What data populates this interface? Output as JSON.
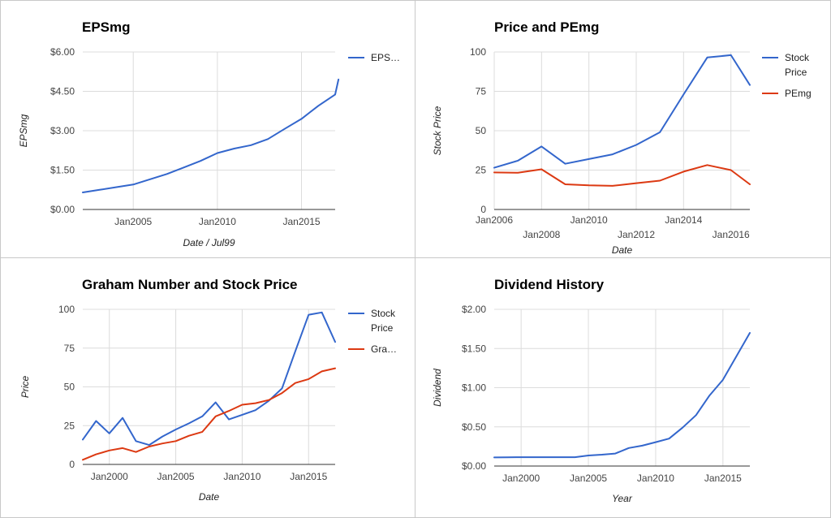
{
  "chart_data": [
    {
      "type": "line",
      "title": "EPSmg",
      "xlabel": "Date / Jul99",
      "ylabel": "EPSmg",
      "x_ticks": [
        {
          "label": "Jan2005",
          "row": 0
        },
        {
          "label": "Jan2010",
          "row": 0
        },
        {
          "label": "Jan2015",
          "row": 0
        }
      ],
      "xlim": [
        2002,
        2017
      ],
      "ylim": [
        0,
        6
      ],
      "y_ticks": [
        0,
        1.5,
        3,
        4.5,
        6
      ],
      "y_tick_labels": [
        "$0.00",
        "$1.50",
        "$3.00",
        "$4.50",
        "$6.00"
      ],
      "grid": true,
      "legend": "right",
      "series": [
        {
          "name": "EPS…",
          "color": "#3366cc",
          "x": [
            2002,
            2003,
            2004,
            2005,
            2006,
            2007,
            2008,
            2009,
            2010,
            2011,
            2012,
            2013,
            2014,
            2015,
            2016,
            2017,
            2017.2
          ],
          "y": [
            0.65,
            0.75,
            0.85,
            0.95,
            1.15,
            1.35,
            1.6,
            1.85,
            2.15,
            2.32,
            2.45,
            2.68,
            3.07,
            3.45,
            3.95,
            4.38,
            4.95
          ]
        }
      ]
    },
    {
      "type": "line",
      "title": "Price and PEmg",
      "xlabel": "Date",
      "ylabel": "Stock Price",
      "x_ticks": [
        {
          "label": "Jan2006",
          "row": 0
        },
        {
          "label": "Jan2008",
          "row": 1
        },
        {
          "label": "Jan2010",
          "row": 0
        },
        {
          "label": "Jan2012",
          "row": 1
        },
        {
          "label": "Jan2014",
          "row": 0
        },
        {
          "label": "Jan2016",
          "row": 1
        }
      ],
      "xlim": [
        2006,
        2016.8
      ],
      "ylim": [
        0,
        100
      ],
      "y_ticks": [
        0,
        25,
        50,
        75,
        100
      ],
      "y_tick_labels": [
        "0",
        "25",
        "50",
        "75",
        "100"
      ],
      "grid": true,
      "legend": "right",
      "series": [
        {
          "name_lines": [
            "Stock",
            "Price"
          ],
          "color": "#3366cc",
          "x": [
            2006,
            2007,
            2008,
            2009,
            2010,
            2011,
            2012,
            2013,
            2014,
            2015,
            2016,
            2016.8
          ],
          "y": [
            26.5,
            31,
            40,
            29,
            32,
            35,
            41,
            49,
            73,
            96.5,
            98,
            79
          ]
        },
        {
          "name_lines": [
            "PEmg"
          ],
          "color": "#dc3912",
          "x": [
            2006,
            2007,
            2008,
            2009,
            2010,
            2011,
            2012,
            2013,
            2014,
            2015,
            2016,
            2016.8
          ],
          "y": [
            23.5,
            23.3,
            25.5,
            16,
            15.3,
            15,
            16.7,
            18.3,
            24,
            28.2,
            25,
            16
          ]
        }
      ]
    },
    {
      "type": "line",
      "title": "Graham Number and Stock Price",
      "xlabel": "Date",
      "ylabel": "Price",
      "x_ticks": [
        {
          "label": "Jan2000",
          "row": 0
        },
        {
          "label": "Jan2005",
          "row": 0
        },
        {
          "label": "Jan2010",
          "row": 0
        },
        {
          "label": "Jan2015",
          "row": 0
        }
      ],
      "xlim": [
        1998,
        2017
      ],
      "ylim": [
        0,
        100
      ],
      "y_ticks": [
        0,
        25,
        50,
        75,
        100
      ],
      "y_tick_labels": [
        "0",
        "25",
        "50",
        "75",
        "100"
      ],
      "grid": true,
      "legend": "right",
      "series": [
        {
          "name_lines": [
            "Stock",
            "Price"
          ],
          "color": "#3366cc",
          "x": [
            1998,
            1999,
            2000,
            2001,
            2002,
            2003,
            2004,
            2005,
            2006,
            2007,
            2008,
            2009,
            2010,
            2011,
            2012,
            2013,
            2014,
            2015,
            2016,
            2017
          ],
          "y": [
            16,
            28,
            20,
            30,
            15,
            12.5,
            18,
            22.5,
            26.5,
            31,
            40,
            29,
            32,
            35,
            41,
            49,
            73,
            96.5,
            98,
            79
          ]
        },
        {
          "name_lines": [
            "Gra…"
          ],
          "color": "#dc3912",
          "x": [
            1998,
            1999,
            2000,
            2001,
            2002,
            2003,
            2004,
            2005,
            2006,
            2007,
            2008,
            2009,
            2010,
            2011,
            2012,
            2013,
            2014,
            2015,
            2016,
            2017
          ],
          "y": [
            3,
            6.5,
            9,
            10.5,
            8,
            11.5,
            13.5,
            15,
            18.5,
            21,
            31,
            34.5,
            38.5,
            39.5,
            41.5,
            46,
            52.5,
            55,
            60,
            62
          ]
        }
      ]
    },
    {
      "type": "line",
      "title": "Dividend History",
      "xlabel": "Year",
      "ylabel": "Dividend",
      "x_ticks": [
        {
          "label": "Jan2000",
          "row": 0
        },
        {
          "label": "Jan2005",
          "row": 0
        },
        {
          "label": "Jan2010",
          "row": 0
        },
        {
          "label": "Jan2015",
          "row": 0
        }
      ],
      "xlim": [
        1998,
        2017
      ],
      "ylim": [
        0,
        2
      ],
      "y_ticks": [
        0,
        0.5,
        1,
        1.5,
        2
      ],
      "y_tick_labels": [
        "$0.00",
        "$0.50",
        "$1.00",
        "$1.50",
        "$2.00"
      ],
      "grid": true,
      "legend": "none",
      "series": [
        {
          "color": "#3366cc",
          "x": [
            1998,
            1999,
            2000,
            2001,
            2002,
            2003,
            2004,
            2005,
            2006,
            2007,
            2008,
            2009,
            2010,
            2011,
            2012,
            2013,
            2014,
            2015,
            2016,
            2017
          ],
          "y": [
            0.11,
            0.112,
            0.113,
            0.113,
            0.113,
            0.113,
            0.113,
            0.135,
            0.145,
            0.16,
            0.23,
            0.26,
            0.305,
            0.35,
            0.49,
            0.65,
            0.9,
            1.1,
            1.4,
            1.7
          ]
        }
      ]
    }
  ]
}
